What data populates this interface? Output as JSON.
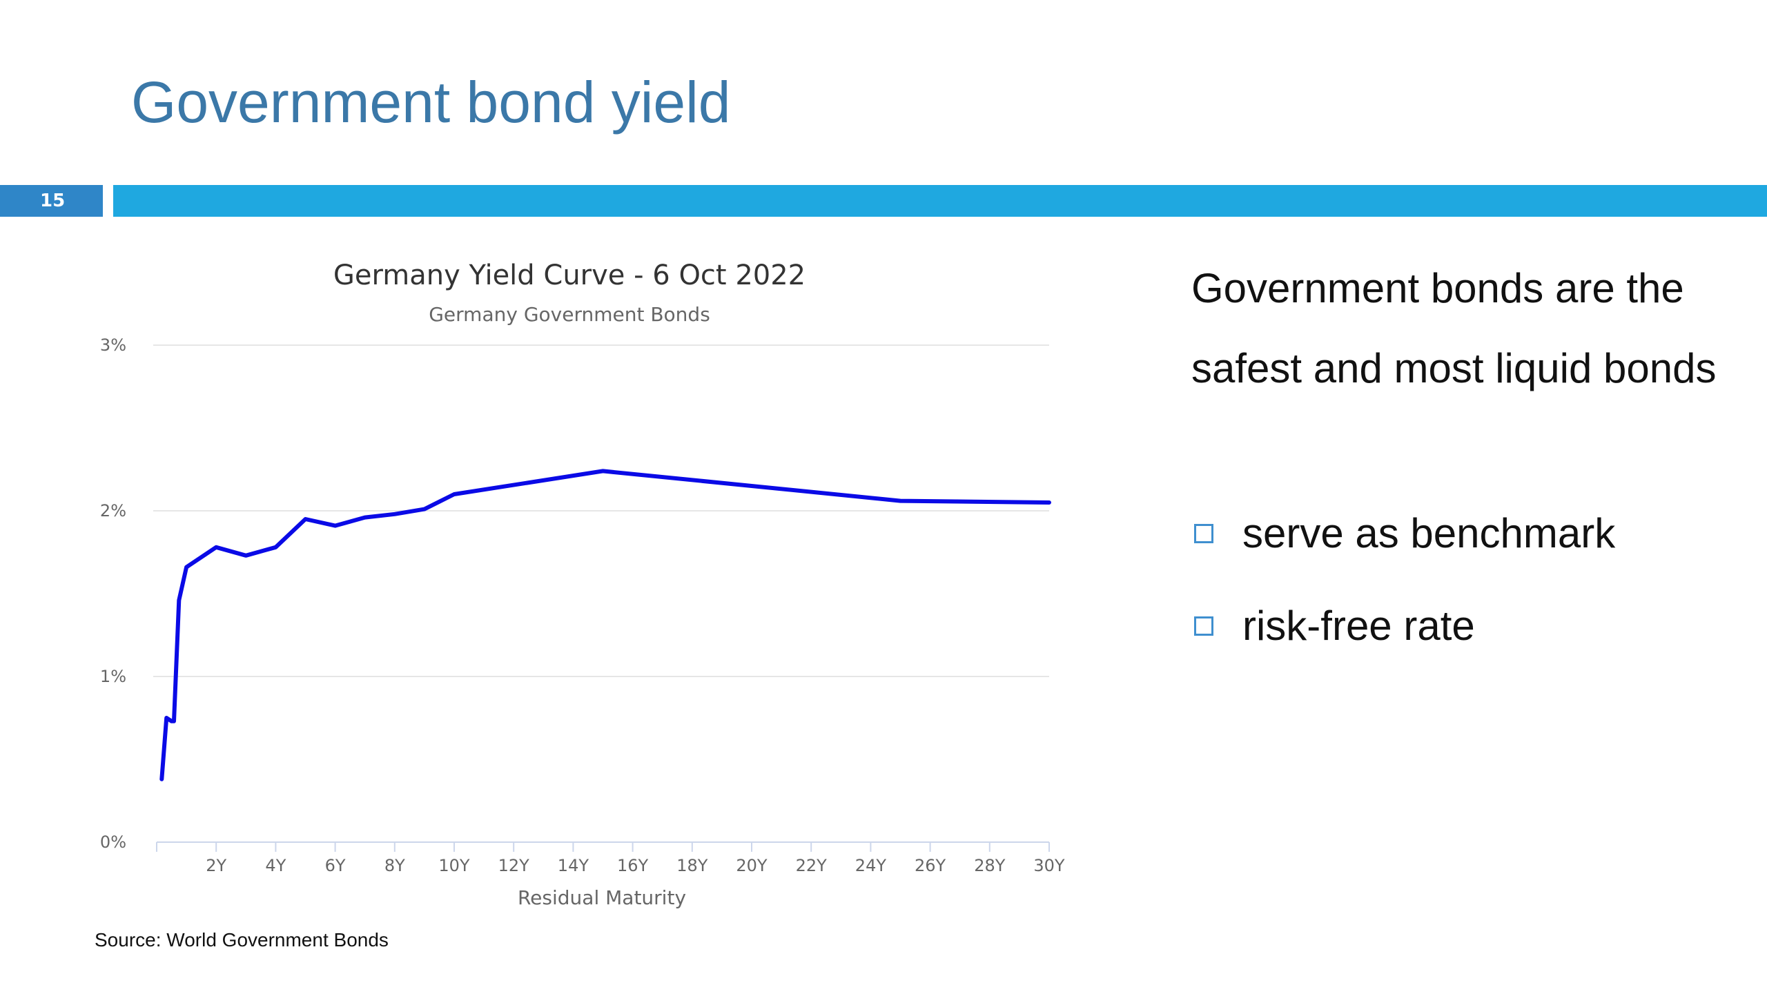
{
  "slide": {
    "title": "Government bond yield",
    "number": "15",
    "source": "Source: World Government Bonds",
    "body_text": "Government bonds are the safest and most liquid bonds",
    "bullets": [
      "serve as benchmark",
      "risk-free rate"
    ]
  },
  "colors": {
    "title": "#3b78a8",
    "accent_bar": "#1fa8e0",
    "number_bar": "#2f86c8",
    "series_line": "#0a0ae6",
    "bullet_box": "#3f8fcf"
  },
  "chart_data": {
    "type": "line",
    "title": "Germany Yield Curve - 6 Oct 2022",
    "subtitle": "Germany Government Bonds",
    "xlabel": "Residual Maturity",
    "ylabel": "",
    "xlim": [
      0,
      30
    ],
    "ylim": [
      0,
      3
    ],
    "grid": true,
    "x_ticks": [
      2,
      4,
      6,
      8,
      10,
      12,
      14,
      16,
      18,
      20,
      22,
      24,
      26,
      28,
      30
    ],
    "x_tick_labels": [
      "2Y",
      "4Y",
      "6Y",
      "8Y",
      "10Y",
      "12Y",
      "14Y",
      "16Y",
      "18Y",
      "20Y",
      "22Y",
      "24Y",
      "26Y",
      "28Y",
      "30Y"
    ],
    "y_ticks": [
      0,
      1,
      2,
      3
    ],
    "y_tick_labels": [
      "0%",
      "1%",
      "2%",
      "3%"
    ],
    "series": [
      {
        "name": "Germany Government Bonds",
        "x": [
          0.17,
          0.33,
          0.5,
          0.58,
          0.75,
          1.0,
          2.0,
          3.0,
          4.0,
          5.0,
          6.0,
          7.0,
          8.0,
          9.0,
          10.0,
          15.0,
          25.0,
          30.0
        ],
        "values": [
          0.38,
          0.75,
          0.73,
          0.73,
          1.46,
          1.66,
          1.78,
          1.73,
          1.78,
          1.95,
          1.91,
          1.96,
          1.98,
          2.01,
          2.1,
          2.24,
          2.06,
          2.05
        ]
      }
    ]
  }
}
